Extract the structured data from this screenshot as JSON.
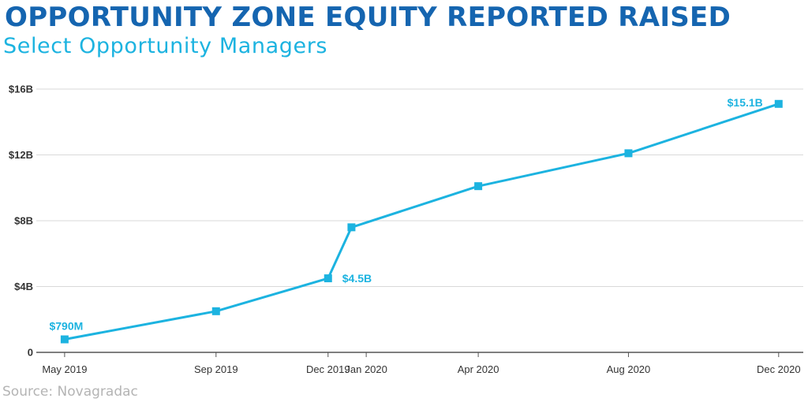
{
  "chart_data": {
    "type": "line",
    "title": "OPPORTUNITY ZONE EQUITY REPORTED RAISED",
    "subtitle": "Select Opportunity Managers",
    "source": "Source: Novagradac",
    "xlabel": "",
    "ylabel": "",
    "ylim": [
      0,
      16
    ],
    "yticks": [
      {
        "value": 0,
        "label": "0"
      },
      {
        "value": 4,
        "label": "$4B"
      },
      {
        "value": 8,
        "label": "$8B"
      },
      {
        "value": 12,
        "label": "$12B"
      },
      {
        "value": 16,
        "label": "$16B"
      }
    ],
    "x_dates": [
      "2019-05-15",
      "2019-09-15",
      "2019-12-15",
      "2020-01-15",
      "2020-04-15",
      "2020-08-15",
      "2020-12-15"
    ],
    "x_range": [
      "2019-04-22",
      "2021-01-04"
    ],
    "x_tick_labels": [
      "May 2019",
      "Sep 2019",
      "Dec 2019",
      "Jan 2020",
      "Apr 2020",
      "Aug 2020",
      "Dec 2020"
    ],
    "points": [
      {
        "x": "2019-05-15",
        "y": 0.79
      },
      {
        "x": "2019-09-15",
        "y": 2.5
      },
      {
        "x": "2019-12-15",
        "y": 4.5
      },
      {
        "x": "2020-01-03",
        "y": 7.6
      },
      {
        "x": "2020-04-15",
        "y": 10.1
      },
      {
        "x": "2020-08-15",
        "y": 12.1
      },
      {
        "x": "2020-12-15",
        "y": 15.1
      }
    ],
    "data_labels": [
      {
        "point_index": 0,
        "text": "$790M",
        "position": "above"
      },
      {
        "point_index": 2,
        "text": "$4.5B",
        "position": "right"
      },
      {
        "point_index": 6,
        "text": "$15.1B",
        "position": "left"
      }
    ],
    "grid": true,
    "legend": "none",
    "colors": {
      "line": "#1cb3e0",
      "title": "#1565b0",
      "subtitle": "#1cb3e0",
      "grid": "#d9d9d9",
      "axis": "#555555",
      "source": "#b4b4b4"
    }
  }
}
